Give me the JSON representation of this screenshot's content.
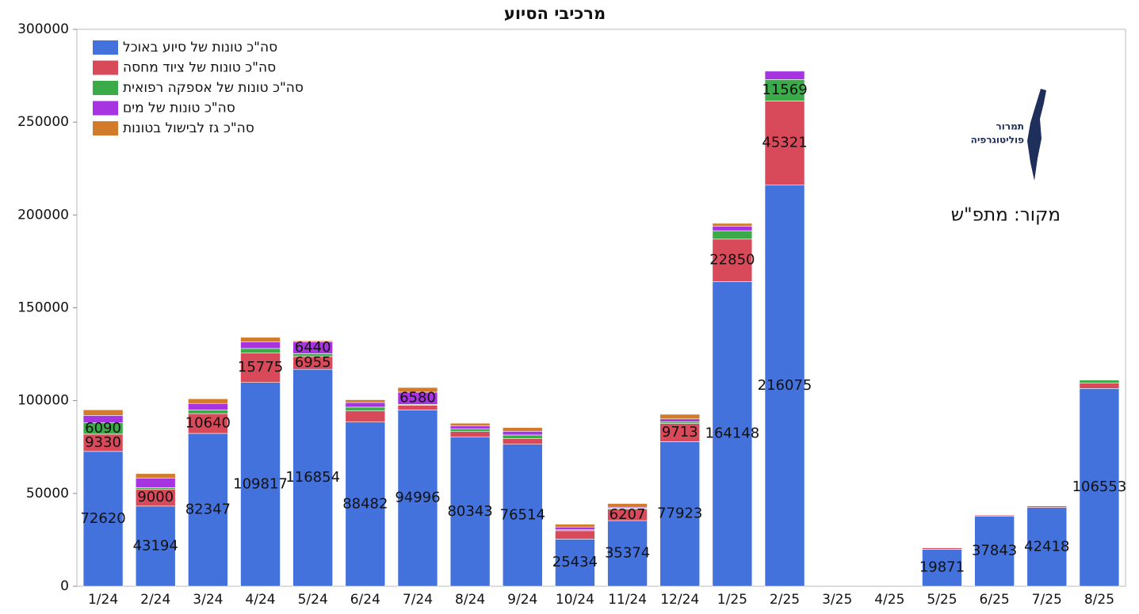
{
  "chart_data": {
    "type": "stacked_bar",
    "title": "מרכיבי הסיוע",
    "source": "מקור: מתפ\"ש",
    "logo_lines": [
      "תמרור",
      "פוליטוגרפיה"
    ],
    "categories": [
      "1/24",
      "2/24",
      "3/24",
      "4/24",
      "5/24",
      "6/24",
      "7/24",
      "8/24",
      "9/24",
      "10/24",
      "11/24",
      "12/24",
      "1/25",
      "2/25",
      "3/25",
      "4/25",
      "5/25",
      "6/25",
      "7/25",
      "8/25"
    ],
    "ylim": [
      0,
      300000
    ],
    "yticks": [
      0,
      50000,
      100000,
      150000,
      200000,
      250000,
      300000
    ],
    "grid": false,
    "legend": "upper-left",
    "series": [
      {
        "name": "סה\"כ טונות של סיוע באוכל",
        "color": "#4472dc",
        "values": [
          72620,
          43194,
          82347,
          109817,
          116854,
          88482,
          94996,
          80343,
          76514,
          25434,
          35374,
          77923,
          164148,
          216075,
          0,
          0,
          19871,
          37843,
          42418,
          106553
        ],
        "value_labels": [
          "72620",
          "43194",
          "82347",
          "109817",
          "116854",
          "88482",
          "94996",
          "80343",
          "76514",
          "25434",
          "35374",
          "77923",
          "164148",
          "216075",
          null,
          null,
          "19871",
          "37843",
          "42418",
          "106553"
        ]
      },
      {
        "name": "סה\"כ טונות של ציוד מחסה",
        "color": "#d8495a",
        "values": [
          9330,
          9000,
          10640,
          15775,
          6955,
          6000,
          2500,
          3000,
          3000,
          4500,
          6207,
          9713,
          22850,
          45321,
          0,
          0,
          800,
          500,
          800,
          3000
        ],
        "value_labels": [
          "9330",
          "9000",
          "10640",
          "15775",
          "6955",
          null,
          null,
          null,
          null,
          null,
          "6207",
          "9713",
          "22850",
          "45321",
          null,
          null,
          null,
          null,
          null,
          null
        ]
      },
      {
        "name": "סה\"כ טונות של אספקה רפואית",
        "color": "#3aab48",
        "values": [
          6090,
          1000,
          2000,
          2500,
          1500,
          2000,
          500,
          1500,
          2000,
          500,
          500,
          1000,
          4500,
          11569,
          0,
          0,
          0,
          0,
          0,
          1500
        ],
        "value_labels": [
          "6090",
          null,
          null,
          null,
          null,
          null,
          null,
          null,
          null,
          null,
          null,
          null,
          null,
          "11569",
          null,
          null,
          null,
          null,
          null,
          null
        ]
      },
      {
        "name": "סה\"כ טונות של מים",
        "color": "#a634e0",
        "values": [
          4000,
          5000,
          3500,
          3500,
          6440,
          2500,
          6580,
          1500,
          2000,
          1500,
          500,
          1500,
          2500,
          4500,
          0,
          0,
          0,
          0,
          0,
          0
        ],
        "value_labels": [
          null,
          null,
          null,
          null,
          "6440",
          null,
          "6580",
          null,
          null,
          null,
          null,
          null,
          null,
          null,
          null,
          null,
          null,
          null,
          null,
          null
        ]
      },
      {
        "name": "סה\"כ גז לבישול בטונות",
        "color": "#d27b2b",
        "values": [
          3000,
          2500,
          2500,
          2500,
          500,
          1500,
          2500,
          1500,
          2000,
          1500,
          2000,
          2500,
          1500,
          0,
          0,
          0,
          0,
          0,
          0,
          0
        ]
      }
    ]
  }
}
